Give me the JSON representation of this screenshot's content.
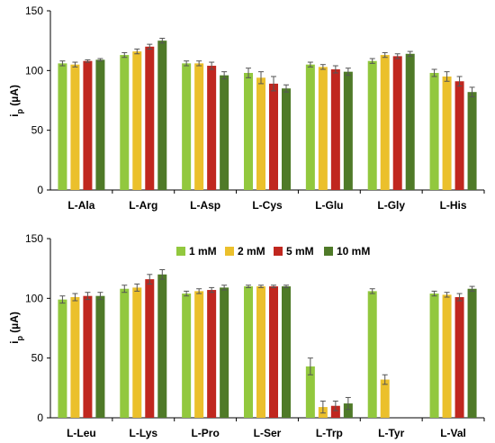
{
  "chart_data": [
    {
      "type": "bar",
      "ylabel": "i",
      "ylabel_sub": "p",
      "ylabel_unit": " (µA)",
      "ylim": [
        0,
        150
      ],
      "yticks": [
        0,
        50,
        100,
        150
      ],
      "categories": [
        "L-Ala",
        "L-Arg",
        "L-Asp",
        "L-Cys",
        "L-Glu",
        "L-Gly",
        "L-His"
      ],
      "series": [
        {
          "name": "1 mM",
          "color": "#92c83e",
          "values": [
            106,
            113,
            106,
            98,
            105,
            108,
            98
          ],
          "errors": [
            2,
            2,
            2,
            4,
            2,
            2,
            3
          ]
        },
        {
          "name": "2 mM",
          "color": "#ebc02c",
          "values": [
            105,
            116,
            106,
            94,
            103,
            113,
            95
          ],
          "errors": [
            2,
            2,
            2,
            5,
            2,
            2,
            4
          ]
        },
        {
          "name": "5 mM",
          "color": "#c0271f",
          "values": [
            108,
            120,
            104,
            89,
            101,
            112,
            91
          ],
          "errors": [
            1,
            2,
            3,
            6,
            3,
            2,
            4
          ]
        },
        {
          "name": "10 mM",
          "color": "#4f7a28",
          "values": [
            109,
            125,
            96,
            85,
            99,
            114,
            82
          ],
          "errors": [
            1,
            2,
            3,
            3,
            3,
            2,
            4
          ]
        }
      ],
      "legend": false
    },
    {
      "type": "bar",
      "ylabel": "i",
      "ylabel_sub": "p",
      "ylabel_unit": " (µA)",
      "ylim": [
        0,
        150
      ],
      "yticks": [
        0,
        50,
        100,
        150
      ],
      "categories": [
        "L-Leu",
        "L-Lys",
        "L-Pro",
        "L-Ser",
        "L-Trp",
        "L-Tyr",
        "L-Val"
      ],
      "series": [
        {
          "name": "1 mM",
          "color": "#92c83e",
          "values": [
            99,
            108,
            104,
            110,
            43,
            106,
            104
          ],
          "errors": [
            3,
            3,
            2,
            1,
            7,
            2,
            2
          ]
        },
        {
          "name": "2 mM",
          "color": "#ebc02c",
          "values": [
            101,
            109,
            106,
            110,
            9,
            32,
            103
          ],
          "errors": [
            3,
            3,
            2,
            1,
            5,
            4,
            2
          ]
        },
        {
          "name": "5 mM",
          "color": "#c0271f",
          "values": [
            102,
            116,
            107,
            110,
            10,
            0,
            101
          ],
          "errors": [
            3,
            4,
            2,
            1,
            4,
            0,
            3
          ]
        },
        {
          "name": "10 mM",
          "color": "#4f7a28",
          "values": [
            102,
            120,
            109,
            110,
            12,
            0,
            108
          ],
          "errors": [
            3,
            4,
            2,
            1,
            5,
            0,
            2
          ]
        }
      ],
      "legend": true,
      "legend_position": "top-center"
    }
  ]
}
